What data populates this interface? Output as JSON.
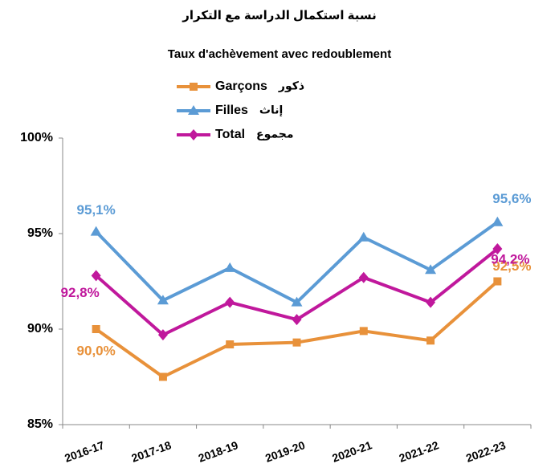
{
  "chart_data": {
    "type": "line",
    "title": "نسبة استكمال الدراسة مع التكرار",
    "subtitle": "Taux d'achèvement avec redoublement",
    "categories": [
      "2016-17",
      "2017-18",
      "2018-19",
      "2019-20",
      "2020-21",
      "2021-22",
      "2022-23"
    ],
    "series": [
      {
        "name": "Garçons",
        "name_ar": "ذكور",
        "color": "#e8913a",
        "marker": "square",
        "values": [
          90.0,
          87.5,
          89.2,
          89.3,
          89.9,
          89.4,
          92.5
        ],
        "value_labels": [
          "90,0%",
          null,
          null,
          null,
          null,
          null,
          "92,5%"
        ]
      },
      {
        "name": "Filles",
        "name_ar": "إناث",
        "color": "#5b9bd5",
        "marker": "triangle",
        "values": [
          95.1,
          91.5,
          93.2,
          91.4,
          94.8,
          93.1,
          95.6
        ],
        "value_labels": [
          "95,1%",
          null,
          null,
          null,
          null,
          null,
          "95,6%"
        ]
      },
      {
        "name": "Total",
        "name_ar": "مجموع",
        "color": "#c0189c",
        "marker": "diamond",
        "values": [
          92.8,
          89.7,
          91.4,
          90.5,
          92.7,
          91.4,
          94.2
        ],
        "value_labels": [
          "92,8%",
          null,
          null,
          null,
          null,
          null,
          "94,2%"
        ]
      }
    ],
    "ylim": [
      85,
      100
    ],
    "yticks": [
      {
        "value": 85,
        "label": "85%"
      },
      {
        "value": 90,
        "label": "90%"
      },
      {
        "value": 95,
        "label": "95%"
      },
      {
        "value": 100,
        "label": "100%"
      }
    ],
    "grid": false
  }
}
